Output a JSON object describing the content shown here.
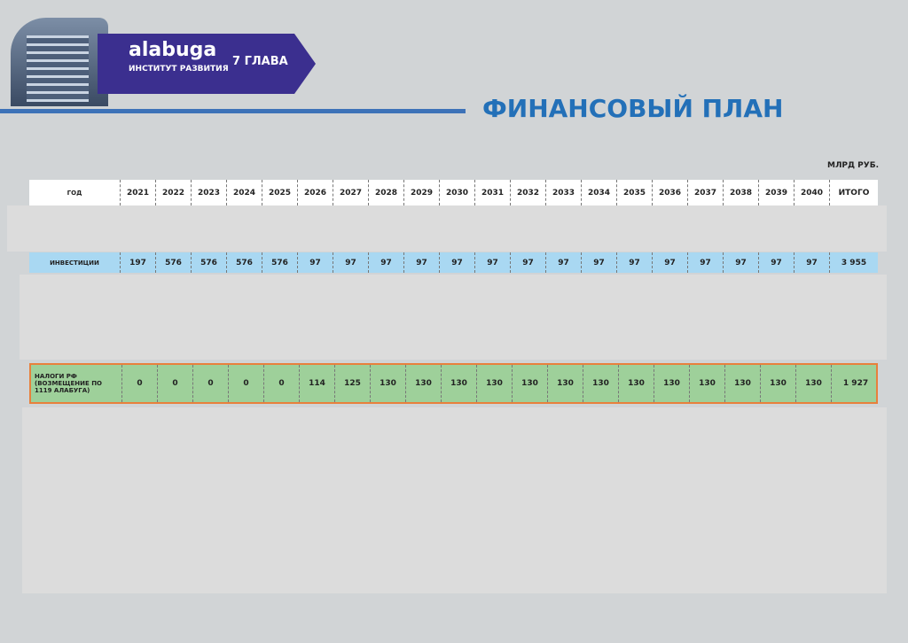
{
  "header": {
    "brand": "alabuga",
    "brand_sub": "ИНСТИТУТ РАЗВИТИЯ",
    "chapter": "7 ГЛАВА",
    "title": "ФИНАНСОВЫЙ ПЛАН",
    "units": "МЛРД РУБ."
  },
  "table": {
    "columns": [
      "ГОД",
      "2021",
      "2022",
      "2023",
      "2024",
      "2025",
      "2026",
      "2027",
      "2028",
      "2029",
      "2030",
      "2031",
      "2032",
      "2033",
      "2034",
      "2035",
      "2036",
      "2037",
      "2038",
      "2039",
      "2040",
      "ИТОГО"
    ],
    "rows": [
      [
        "ИНВЕСТИЦИИ",
        197,
        576,
        576,
        576,
        576,
        97,
        97,
        97,
        97,
        97,
        97,
        97,
        97,
        97,
        97,
        97,
        97,
        97,
        97,
        97,
        "3 955"
      ],
      [
        "НАЛОГИ РФ (ВОЗМЕЩЕНИЕ ПО 1119 АЛАБУГА)",
        0,
        0,
        0,
        0,
        0,
        114,
        125,
        130,
        130,
        130,
        130,
        130,
        130,
        130,
        130,
        130,
        130,
        130,
        130,
        130,
        "1 927"
      ]
    ]
  }
}
